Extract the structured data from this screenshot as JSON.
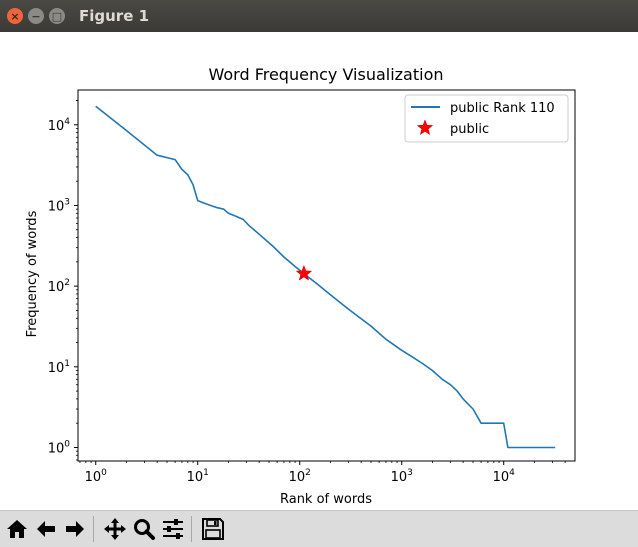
{
  "window": {
    "title": "Figure 1",
    "close_glyph": "×",
    "minimize_glyph": "−",
    "maximize_glyph": "□"
  },
  "toolbar": {
    "buttons": [
      {
        "icon": "home-icon",
        "tooltip": "Home"
      },
      {
        "icon": "back-arrow-icon",
        "tooltip": "Back"
      },
      {
        "icon": "forward-arrow-icon",
        "tooltip": "Forward"
      },
      {
        "icon": "pan-icon",
        "tooltip": "Pan"
      },
      {
        "icon": "zoom-icon",
        "tooltip": "Zoom"
      },
      {
        "icon": "subplots-icon",
        "tooltip": "Subplots"
      },
      {
        "icon": "save-icon",
        "tooltip": "Save"
      }
    ]
  },
  "chart_data": {
    "type": "line",
    "title": "Word Frequency Visualization",
    "xlabel": "Rank of words",
    "ylabel": "Frequency of words",
    "xscale": "log",
    "yscale": "log",
    "xlim": [
      0.67,
      50000
    ],
    "ylim": [
      0.68,
      27000
    ],
    "xticks": [
      {
        "value": 1,
        "base": "10",
        "exp": "0"
      },
      {
        "value": 10,
        "base": "10",
        "exp": "1"
      },
      {
        "value": 100,
        "base": "10",
        "exp": "2"
      },
      {
        "value": 1000,
        "base": "10",
        "exp": "3"
      },
      {
        "value": 10000,
        "base": "10",
        "exp": "4"
      }
    ],
    "yticks": [
      {
        "value": 1,
        "base": "10",
        "exp": "0"
      },
      {
        "value": 10,
        "base": "10",
        "exp": "1"
      },
      {
        "value": 100,
        "base": "10",
        "exp": "2"
      },
      {
        "value": 1000,
        "base": "10",
        "exp": "3"
      },
      {
        "value": 10000,
        "base": "10",
        "exp": "4"
      }
    ],
    "grid": false,
    "legend_position": "upper right",
    "series": [
      {
        "name": "public Rank 110",
        "color": "#1f77b4",
        "x": [
          1,
          2,
          4,
          6,
          7,
          8,
          9,
          10,
          12,
          15,
          18,
          20,
          24,
          28,
          32,
          40,
          55,
          70,
          90,
          110,
          150,
          200,
          300,
          500,
          700,
          1000,
          1300,
          1600,
          2000,
          2500,
          3000,
          3500,
          4000,
          5000,
          6000,
          7000,
          8000,
          10000,
          11000,
          20000,
          32000
        ],
        "y": [
          17000,
          8500,
          4200,
          3700,
          2800,
          2400,
          1800,
          1150,
          1050,
          950,
          900,
          800,
          730,
          670,
          560,
          440,
          310,
          230,
          175,
          143,
          105,
          78,
          52,
          32,
          22,
          16,
          13,
          11,
          9,
          7,
          6,
          5,
          4,
          3,
          2,
          2,
          2,
          2,
          1,
          1,
          1
        ]
      },
      {
        "name": "public",
        "type": "scatter",
        "marker": "star",
        "color": "#ff0000",
        "x": [
          110
        ],
        "y": [
          143
        ]
      }
    ]
  }
}
